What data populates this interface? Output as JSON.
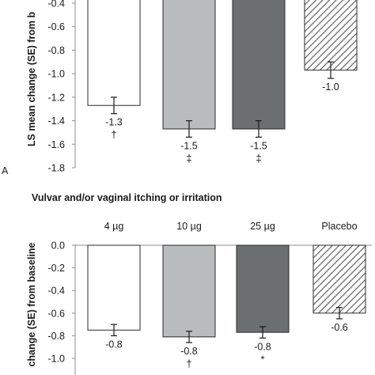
{
  "chart_data": [
    {
      "type": "bar",
      "panel_label": "A",
      "title": "",
      "ylabel": "LS mean change (SE) from b",
      "ylim": [
        -1.8,
        -0.4
      ],
      "yticks": [
        "-0.4",
        "-0.6",
        "-0.8",
        "-1.0",
        "-1.2",
        "-1.4",
        "-1.6",
        "-1.8"
      ],
      "ytick_values": [
        -0.4,
        -0.6,
        -0.8,
        -1.0,
        -1.2,
        -1.4,
        -1.6,
        -1.8
      ],
      "categories": [
        "4 µg",
        "10 µg",
        "25 µg",
        "Placebo"
      ],
      "values": [
        -1.27,
        -1.47,
        -1.47,
        -0.97
      ],
      "errors": [
        0.07,
        0.07,
        0.07,
        0.07
      ],
      "value_labels": [
        "-1.3",
        "-1.5",
        "-1.5",
        "-1.0"
      ],
      "significance": [
        "†",
        "‡",
        "‡",
        ""
      ],
      "show_category_labels": false
    },
    {
      "type": "bar",
      "panel_label": "",
      "title": "Vulvar and/or vaginal itching or irritation",
      "ylabel": "change (SE) from baseline",
      "ylim": [
        -1.1,
        0.0
      ],
      "yticks": [
        "0.0",
        "-0.2",
        "-0.4",
        "-0.6",
        "-0.8",
        "-1.0"
      ],
      "ytick_values": [
        0.0,
        -0.2,
        -0.4,
        -0.6,
        -0.8,
        -1.0
      ],
      "categories": [
        "4 µg",
        "10 µg",
        "25 µg",
        "Placebo"
      ],
      "values": [
        -0.75,
        -0.81,
        -0.77,
        -0.6
      ],
      "errors": [
        0.05,
        0.05,
        0.05,
        0.05
      ],
      "value_labels": [
        "-0.8",
        "-0.8",
        "-0.8",
        "-0.6"
      ],
      "significance": [
        "",
        "†",
        "*",
        ""
      ],
      "show_category_labels": true
    }
  ],
  "colors": {
    "bar_fills": [
      "#ffffff",
      "#b9bcbc",
      "#6b6f70",
      "hatch"
    ],
    "bar_stroke": "#2a2a2a",
    "axis": "#8c8c8c",
    "text": "#1a1a1a"
  }
}
